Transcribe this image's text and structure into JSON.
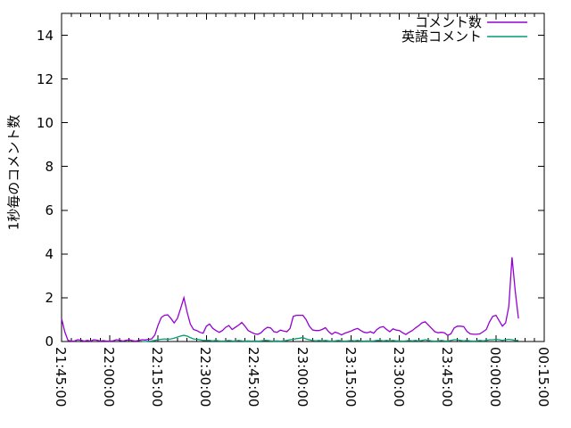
{
  "chart_data": {
    "type": "line",
    "title": "",
    "xlabel": "",
    "ylabel": "1秒毎のコメント数",
    "ylim": [
      0,
      15
    ],
    "y_ticks": [
      0,
      2,
      4,
      6,
      8,
      10,
      12,
      14
    ],
    "grid": false,
    "legend_position": "top-right-inside",
    "x_axis": {
      "range_minutes": [
        0,
        150
      ],
      "major_tick_interval_min": 15,
      "minor_tick_interval_min": 3,
      "tick_labels": [
        "21:45:00",
        "22:00:00",
        "22:15:00",
        "22:30:00",
        "22:45:00",
        "23:00:00",
        "23:15:00",
        "23:30:00",
        "23:45:00",
        "00:00:00",
        "00:15:00"
      ]
    },
    "series": [
      {
        "name": "コメント数",
        "color": "#9400d3",
        "x_start_min": 0,
        "x_step_min": 1,
        "values": [
          1.05,
          0.45,
          0.05,
          0.02,
          0.02,
          0.08,
          0.06,
          0.02,
          0.05,
          0.02,
          0.08,
          0.06,
          0.02,
          0.04,
          0.02,
          0.02,
          0.03,
          0.08,
          0.06,
          0.02,
          0.05,
          0.08,
          0.04,
          0.02,
          0.05,
          0.08,
          0.07,
          0.1,
          0.12,
          0.3,
          0.75,
          1.1,
          1.2,
          1.22,
          1.05,
          0.85,
          1.05,
          1.5,
          2.0,
          1.35,
          0.8,
          0.55,
          0.5,
          0.42,
          0.38,
          0.7,
          0.8,
          0.6,
          0.5,
          0.42,
          0.5,
          0.65,
          0.73,
          0.55,
          0.65,
          0.75,
          0.87,
          0.7,
          0.5,
          0.42,
          0.35,
          0.33,
          0.4,
          0.55,
          0.65,
          0.62,
          0.45,
          0.42,
          0.52,
          0.48,
          0.45,
          0.6,
          1.15,
          1.2,
          1.2,
          1.2,
          1.0,
          0.7,
          0.53,
          0.5,
          0.5,
          0.55,
          0.63,
          0.45,
          0.33,
          0.43,
          0.38,
          0.3,
          0.38,
          0.43,
          0.48,
          0.55,
          0.6,
          0.5,
          0.42,
          0.4,
          0.45,
          0.38,
          0.55,
          0.65,
          0.68,
          0.55,
          0.45,
          0.58,
          0.52,
          0.5,
          0.4,
          0.32,
          0.42,
          0.5,
          0.62,
          0.72,
          0.85,
          0.9,
          0.75,
          0.6,
          0.45,
          0.4,
          0.42,
          0.4,
          0.28,
          0.35,
          0.62,
          0.7,
          0.7,
          0.68,
          0.46,
          0.35,
          0.33,
          0.33,
          0.35,
          0.45,
          0.55,
          0.9,
          1.15,
          1.2,
          0.95,
          0.7,
          0.85,
          1.6,
          3.85,
          2.3,
          1.05
        ]
      },
      {
        "name": "英語コメント",
        "color": "#009e73",
        "x_start_min": 25,
        "x_step_min": 1,
        "values": [
          0,
          0,
          0.02,
          0.03,
          0.05,
          0.08,
          0.1,
          0.12,
          0.1,
          0.12,
          0.15,
          0.2,
          0.25,
          0.28,
          0.25,
          0.18,
          0.12,
          0.1,
          0.08,
          0.05,
          0.05,
          0.05,
          0.03,
          0.05,
          0.03,
          0.02,
          0.03,
          0.05,
          0.03,
          0.02,
          0.05,
          0.03,
          0.02,
          0.03,
          0.02,
          0.03,
          0.02,
          0.03,
          0.05,
          0.05,
          0.03,
          0.02,
          0.03,
          0.02,
          0.03,
          0.05,
          0.08,
          0.1,
          0.13,
          0.15,
          0.18,
          0.12,
          0.08,
          0.05,
          0.03,
          0.05,
          0.03,
          0.05,
          0.03,
          0.02,
          0.03,
          0.05,
          0.03,
          0.02,
          0.03,
          0.05,
          0.03,
          0.05,
          0.03,
          0.02,
          0.03,
          0.02,
          0.03,
          0.05,
          0.05,
          0.03,
          0.05,
          0.03,
          0.05,
          0.03,
          0.03,
          0.02,
          0.03,
          0.05,
          0.03,
          0.05,
          0.03,
          0.05,
          0.08,
          0.05,
          0.03,
          0.02,
          0.03,
          0.05,
          0.03,
          0.02,
          0.05,
          0.08,
          0.08,
          0.05,
          0.03,
          0.05,
          0.03,
          0.02,
          0.03,
          0.05,
          0.03,
          0.05,
          0.08,
          0.08,
          0.1,
          0.08,
          0.05,
          0.08,
          0.1,
          0.08,
          0.05,
          0.05
        ]
      }
    ]
  },
  "ui": {
    "axis_color": "#000000",
    "background_color": "#ffffff"
  }
}
